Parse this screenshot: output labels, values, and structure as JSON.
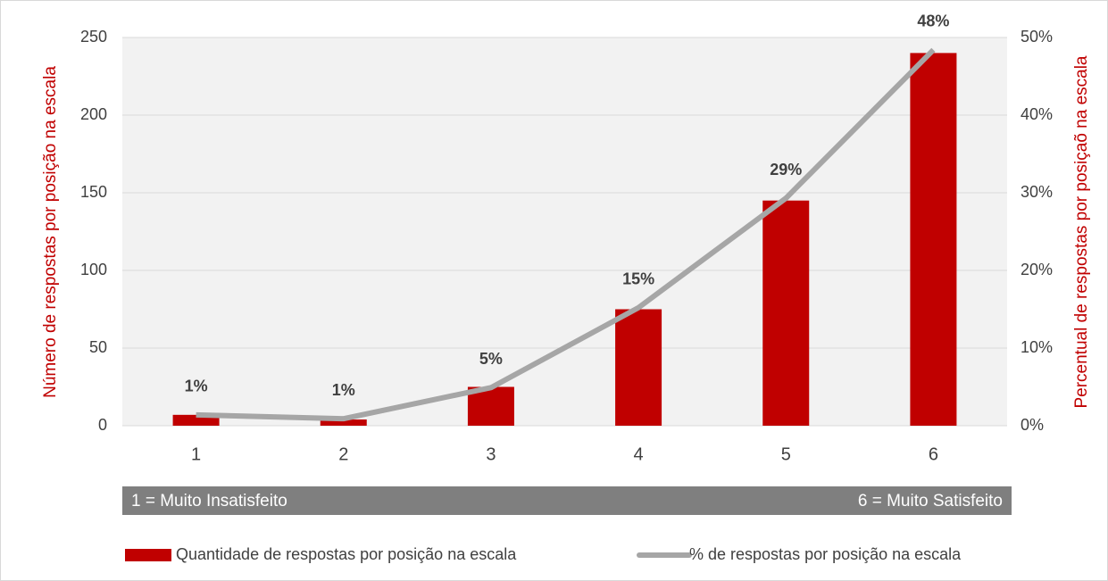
{
  "chart_data": {
    "type": "bar",
    "categories": [
      "1",
      "2",
      "3",
      "4",
      "5",
      "6"
    ],
    "series": [
      {
        "name": "Quantidade de respostas por posição na escala",
        "type": "bar",
        "color": "#c00000",
        "values": [
          7,
          4,
          25,
          75,
          145,
          240
        ]
      },
      {
        "name": "% de respostas por posição na escala",
        "type": "line",
        "axis": "y2",
        "color": "#a6a6a6",
        "values": [
          1.4,
          0.9,
          4.9,
          15.2,
          29.3,
          48.4
        ],
        "value_labels": [
          "1%",
          "1%",
          "5%",
          "15%",
          "29%",
          "48%"
        ]
      }
    ],
    "ylabel": "Número de respostas por posição na escala",
    "y2label": "Percentual de respostas por posiçaõ na escala",
    "ylim": [
      0,
      250
    ],
    "yticks": [
      0,
      50,
      100,
      150,
      200,
      250
    ],
    "y2lim": [
      0,
      50
    ],
    "y2ticks": [
      {
        "value": 0,
        "label": "0%"
      },
      {
        "value": 10,
        "label": "10%"
      },
      {
        "value": 20,
        "label": "20%"
      },
      {
        "value": 30,
        "label": "30%"
      },
      {
        "value": 40,
        "label": "40%"
      },
      {
        "value": 50,
        "label": "50%"
      }
    ],
    "annotations": [
      "1 = Muito Insatisfeito",
      "6 = Muito Satisfeito"
    ],
    "grid": true,
    "legend": "bottom"
  }
}
